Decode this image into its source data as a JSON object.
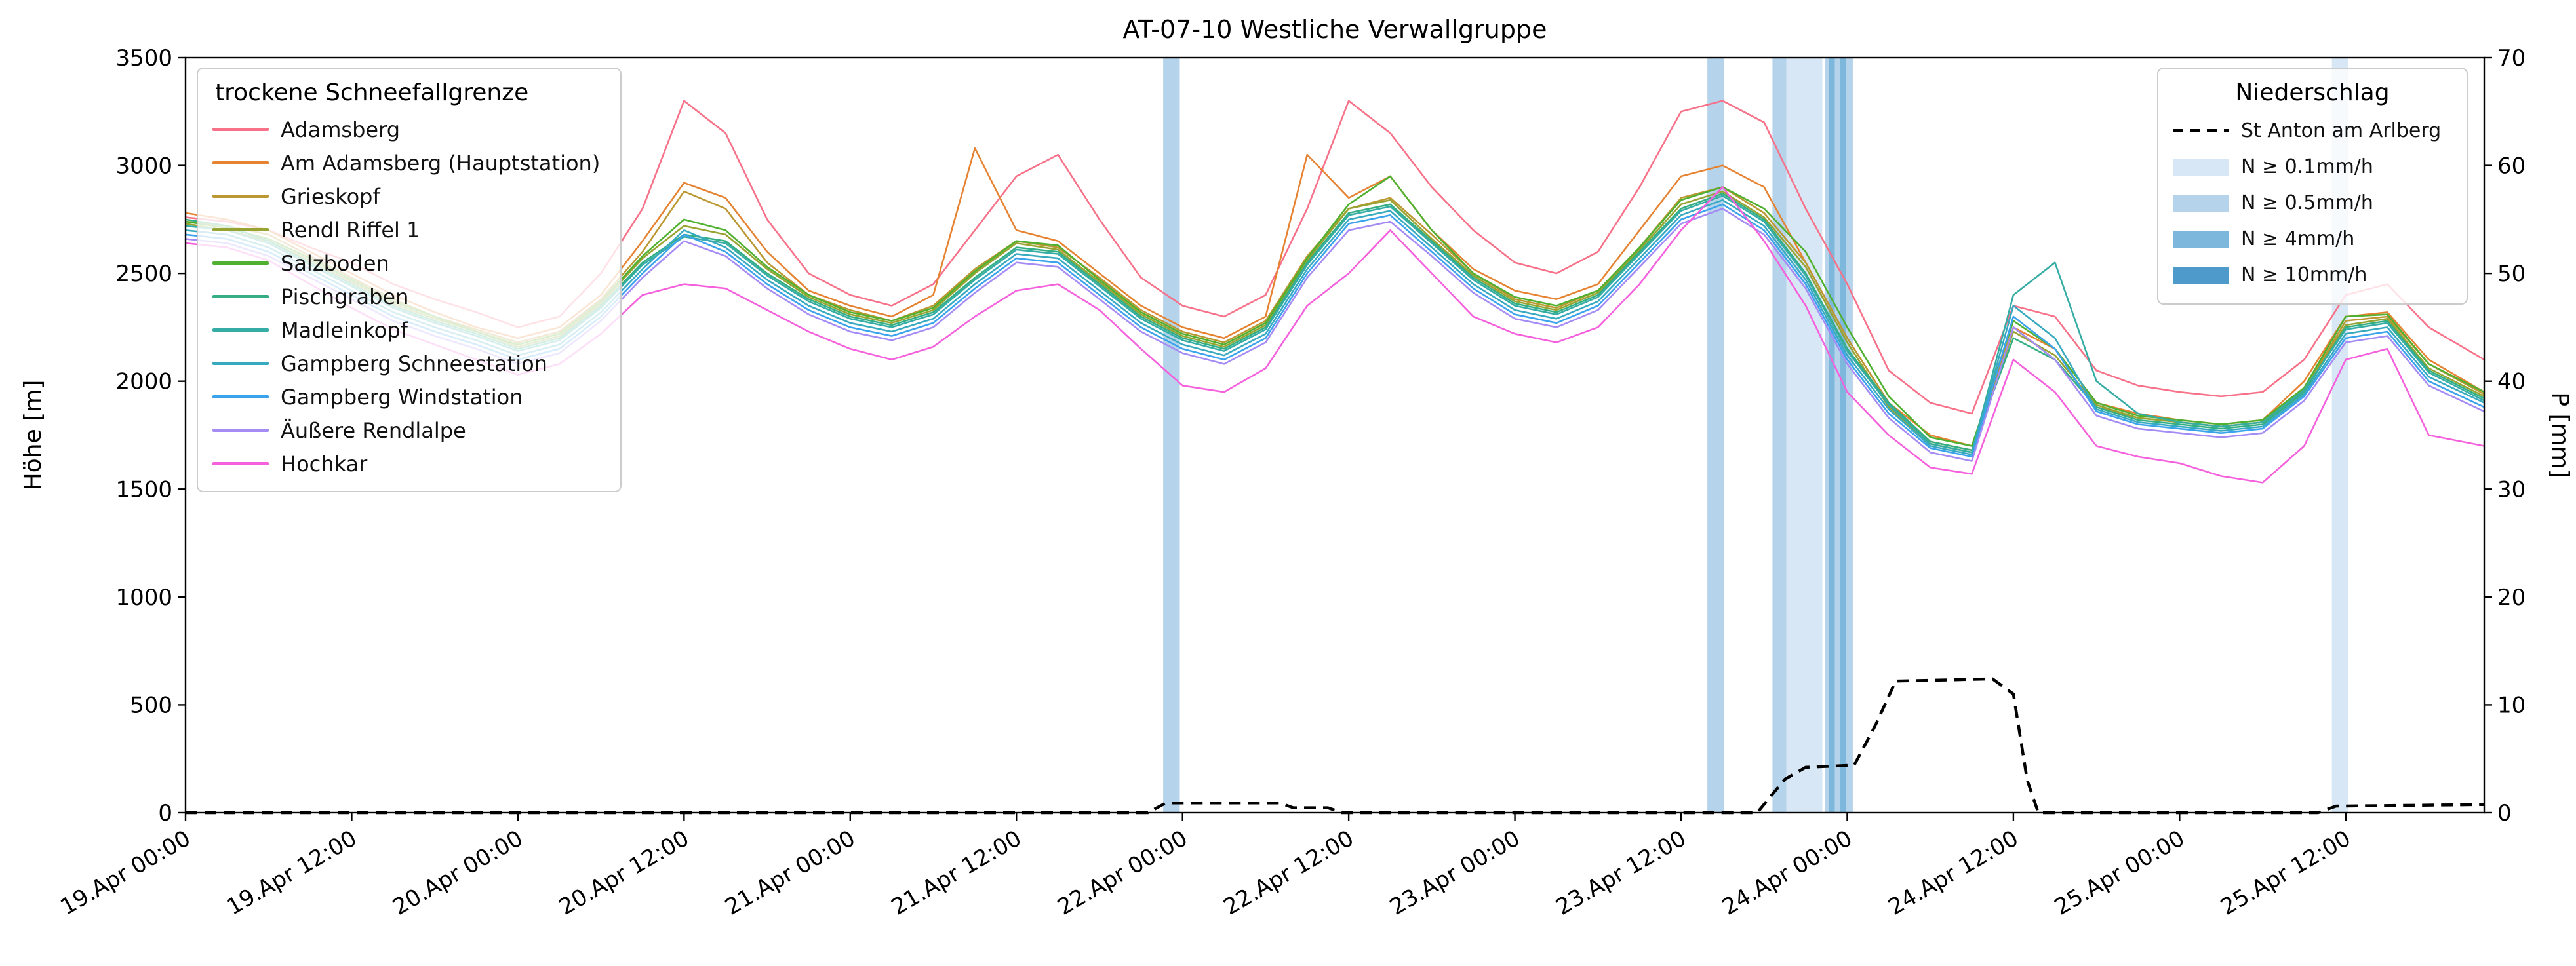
{
  "title": "AT-07-10 Westliche Verwallgruppe",
  "axes": {
    "y_left": {
      "label": "Höhe [m]",
      "min": 0,
      "max": 3500,
      "ticks": [
        0,
        500,
        1000,
        1500,
        2000,
        2500,
        3000,
        3500
      ]
    },
    "y_right": {
      "label": "P [mm]",
      "min": 0,
      "max": 70,
      "ticks": [
        0,
        10,
        20,
        30,
        40,
        50,
        60,
        70
      ]
    },
    "x": {
      "min_h": 0,
      "max_h": 166,
      "tick_step_h": 12,
      "tick_labels": [
        "19.Apr 00:00",
        "19.Apr 12:00",
        "20.Apr 00:00",
        "20.Apr 12:00",
        "21.Apr 00:00",
        "21.Apr 12:00",
        "22.Apr 00:00",
        "22.Apr 12:00",
        "23.Apr 00:00",
        "23.Apr 12:00",
        "24.Apr 00:00",
        "24.Apr 12:00",
        "25.Apr 00:00",
        "25.Apr 12:00"
      ]
    }
  },
  "legend_left": {
    "title": "trockene Schneefallgrenze"
  },
  "legend_right": {
    "title": "Niederschlag",
    "line_entry": "St Anton am Arlberg",
    "band_entries": [
      {
        "label": "N ≥ 0.1mm/h",
        "level": "0.1"
      },
      {
        "label": "N ≥ 0.5mm/h",
        "level": "0.5"
      },
      {
        "label": "N ≥ 4mm/h",
        "level": "4"
      },
      {
        "label": "N ≥ 10mm/h",
        "level": "10"
      }
    ]
  },
  "chart_data": {
    "type": "line",
    "title": "AT-07-10 Westliche Verwallgruppe",
    "xlabel": "",
    "ylabel": "Höhe [m]",
    "ylabel_right": "P [mm]",
    "ylim_left": [
      0,
      3500
    ],
    "ylim_right": [
      0,
      70
    ],
    "x_unit": "hours since 19.Apr 00:00",
    "x_hours": [
      0,
      3,
      6,
      9,
      12,
      15,
      18,
      21,
      24,
      27,
      30,
      33,
      36,
      39,
      42,
      45,
      48,
      51,
      54,
      57,
      60,
      63,
      66,
      69,
      72,
      75,
      78,
      81,
      84,
      87,
      90,
      93,
      96,
      99,
      102,
      105,
      108,
      111,
      114,
      117,
      120,
      123,
      126,
      129,
      132,
      135,
      138,
      141,
      144,
      147,
      150,
      153,
      156,
      159,
      162,
      166
    ],
    "series": [
      {
        "name": "Adamsberg",
        "color": "#f77189",
        "values": [
          2760,
          2740,
          2700,
          2620,
          2550,
          2450,
          2380,
          2320,
          2250,
          2300,
          2500,
          2800,
          3300,
          3150,
          2750,
          2500,
          2400,
          2350,
          2450,
          2700,
          2950,
          3050,
          2750,
          2480,
          2350,
          2300,
          2400,
          2800,
          3300,
          3150,
          2900,
          2700,
          2550,
          2500,
          2600,
          2900,
          3250,
          3300,
          3200,
          2800,
          2450,
          2050,
          1900,
          1850,
          2350,
          2300,
          2050,
          1980,
          1950,
          1930,
          1950,
          2100,
          2400,
          2450,
          2250,
          2100
        ]
      },
      {
        "name": "Am Adamsberg (Hauptstation)",
        "color": "#e68332",
        "values": [
          2780,
          2750,
          2700,
          2600,
          2500,
          2400,
          2320,
          2250,
          2200,
          2250,
          2400,
          2650,
          2920,
          2850,
          2600,
          2420,
          2350,
          2300,
          2400,
          3080,
          2700,
          2650,
          2500,
          2350,
          2250,
          2200,
          2300,
          3050,
          2850,
          2950,
          2700,
          2520,
          2420,
          2380,
          2450,
          2700,
          2950,
          3000,
          2900,
          2550,
          2200,
          1900,
          1750,
          1700,
          2250,
          2150,
          1900,
          1850,
          1820,
          1800,
          1820,
          2000,
          2300,
          2320,
          2100,
          1950
        ]
      },
      {
        "name": "Grieskopf",
        "color": "#bb9832",
        "values": [
          2740,
          2720,
          2680,
          2580,
          2480,
          2380,
          2300,
          2240,
          2180,
          2230,
          2380,
          2600,
          2880,
          2800,
          2550,
          2400,
          2330,
          2280,
          2350,
          2520,
          2650,
          2620,
          2480,
          2330,
          2230,
          2180,
          2280,
          2580,
          2800,
          2850,
          2680,
          2500,
          2380,
          2340,
          2420,
          2620,
          2850,
          2900,
          2780,
          2550,
          2200,
          1900,
          1720,
          1680,
          2250,
          2100,
          1880,
          1830,
          1810,
          1790,
          1810,
          1960,
          2280,
          2300,
          2080,
          1940
        ]
      },
      {
        "name": "Rendl Riffel 1",
        "color": "#97a431",
        "values": [
          2730,
          2700,
          2650,
          2560,
          2460,
          2360,
          2290,
          2230,
          2160,
          2210,
          2360,
          2570,
          2720,
          2680,
          2520,
          2390,
          2310,
          2270,
          2330,
          2500,
          2640,
          2610,
          2460,
          2310,
          2210,
          2160,
          2260,
          2560,
          2800,
          2840,
          2660,
          2490,
          2370,
          2330,
          2410,
          2610,
          2820,
          2880,
          2760,
          2530,
          2180,
          1880,
          1710,
          1670,
          2230,
          2120,
          1890,
          1830,
          1810,
          1790,
          1810,
          1960,
          2260,
          2290,
          2060,
          1930
        ]
      },
      {
        "name": "Salzboden",
        "color": "#50b131",
        "values": [
          2740,
          2710,
          2660,
          2570,
          2470,
          2370,
          2300,
          2230,
          2170,
          2220,
          2370,
          2580,
          2750,
          2700,
          2530,
          2400,
          2320,
          2280,
          2340,
          2510,
          2650,
          2630,
          2470,
          2320,
          2220,
          2170,
          2270,
          2570,
          2820,
          2950,
          2700,
          2500,
          2390,
          2350,
          2420,
          2620,
          2840,
          2900,
          2800,
          2600,
          2250,
          1930,
          1740,
          1700,
          2280,
          2150,
          1900,
          1840,
          1820,
          1800,
          1820,
          1970,
          2300,
          2310,
          2080,
          1950
        ]
      },
      {
        "name": "Pischgraben",
        "color": "#34af84",
        "values": [
          2750,
          2720,
          2650,
          2550,
          2450,
          2350,
          2280,
          2220,
          2150,
          2200,
          2350,
          2550,
          2680,
          2650,
          2500,
          2380,
          2300,
          2260,
          2320,
          2480,
          2620,
          2600,
          2450,
          2300,
          2200,
          2150,
          2250,
          2550,
          2780,
          2820,
          2650,
          2480,
          2360,
          2320,
          2400,
          2600,
          2800,
          2870,
          2750,
          2500,
          2150,
          1900,
          1720,
          1680,
          2200,
          2100,
          1880,
          1820,
          1800,
          1780,
          1800,
          1950,
          2250,
          2280,
          2050,
          1920
        ]
      },
      {
        "name": "Madleinkopf",
        "color": "#36ada4",
        "values": [
          2720,
          2700,
          2640,
          2540,
          2440,
          2340,
          2270,
          2210,
          2140,
          2190,
          2340,
          2540,
          2670,
          2640,
          2490,
          2370,
          2290,
          2250,
          2310,
          2470,
          2610,
          2590,
          2440,
          2290,
          2190,
          2140,
          2240,
          2540,
          2770,
          2810,
          2640,
          2470,
          2350,
          2310,
          2390,
          2590,
          2790,
          2860,
          2740,
          2490,
          2140,
          1890,
          1710,
          1670,
          2400,
          2550,
          2000,
          1850,
          1810,
          1790,
          1810,
          1960,
          2240,
          2270,
          2040,
          1910
        ]
      },
      {
        "name": "Gampberg Schneestation",
        "color": "#38aabf",
        "values": [
          2700,
          2680,
          2620,
          2520,
          2420,
          2320,
          2250,
          2190,
          2120,
          2170,
          2320,
          2520,
          2700,
          2620,
          2470,
          2350,
          2270,
          2230,
          2290,
          2450,
          2590,
          2570,
          2420,
          2270,
          2170,
          2120,
          2220,
          2520,
          2750,
          2790,
          2620,
          2450,
          2330,
          2290,
          2370,
          2570,
          2770,
          2840,
          2720,
          2470,
          2120,
          1870,
          1700,
          1660,
          2350,
          2200,
          1870,
          1810,
          1790,
          1770,
          1790,
          1940,
          2220,
          2250,
          2020,
          1900
        ]
      },
      {
        "name": "Gampberg Windstation",
        "color": "#3ba3ec",
        "values": [
          2680,
          2660,
          2600,
          2500,
          2400,
          2300,
          2230,
          2170,
          2100,
          2150,
          2300,
          2500,
          2680,
          2600,
          2450,
          2330,
          2250,
          2210,
          2270,
          2430,
          2570,
          2550,
          2400,
          2250,
          2150,
          2100,
          2200,
          2500,
          2730,
          2770,
          2600,
          2430,
          2310,
          2270,
          2350,
          2550,
          2750,
          2820,
          2700,
          2450,
          2100,
          1850,
          1690,
          1650,
          2300,
          2150,
          1860,
          1800,
          1780,
          1760,
          1780,
          1930,
          2200,
          2230,
          2000,
          1880
        ]
      },
      {
        "name": "Äußere Rendlalpe",
        "color": "#a48cf4",
        "values": [
          2660,
          2640,
          2580,
          2480,
          2380,
          2280,
          2210,
          2150,
          2080,
          2130,
          2280,
          2480,
          2650,
          2580,
          2430,
          2310,
          2230,
          2190,
          2250,
          2410,
          2550,
          2530,
          2380,
          2230,
          2130,
          2080,
          2180,
          2480,
          2700,
          2740,
          2580,
          2410,
          2290,
          2250,
          2330,
          2530,
          2730,
          2800,
          2680,
          2430,
          2080,
          1830,
          1670,
          1630,
          2250,
          2100,
          1840,
          1780,
          1760,
          1740,
          1760,
          1910,
          2180,
          2210,
          1980,
          1860
        ]
      },
      {
        "name": "Hochkar",
        "color": "#f561dd",
        "values": [
          2640,
          2620,
          2560,
          2450,
          2340,
          2240,
          2170,
          2100,
          2030,
          2080,
          2220,
          2400,
          2450,
          2430,
          2330,
          2230,
          2150,
          2100,
          2160,
          2300,
          2420,
          2450,
          2330,
          2150,
          1980,
          1950,
          2060,
          2350,
          2500,
          2700,
          2500,
          2300,
          2220,
          2180,
          2250,
          2450,
          2700,
          2900,
          2650,
          2350,
          1950,
          1750,
          1600,
          1570,
          2100,
          1950,
          1700,
          1650,
          1620,
          1560,
          1530,
          1700,
          2100,
          2150,
          1750,
          1700
        ]
      }
    ],
    "precip_line": {
      "name": "St Anton am Arlberg",
      "color": "#000000",
      "style": "dashed",
      "axis": "right",
      "points": [
        [
          0,
          0
        ],
        [
          69.5,
          0
        ],
        [
          70.8,
          0.9
        ],
        [
          79,
          0.9
        ],
        [
          80,
          0.45
        ],
        [
          82.5,
          0.45
        ],
        [
          83.5,
          0
        ],
        [
          113.5,
          0
        ],
        [
          115.5,
          3.1
        ],
        [
          117,
          4.2
        ],
        [
          120.5,
          4.4
        ],
        [
          122,
          8
        ],
        [
          123.5,
          12.2
        ],
        [
          130.5,
          12.4
        ],
        [
          132,
          11
        ],
        [
          133,
          3
        ],
        [
          133.8,
          0
        ],
        [
          154,
          0
        ],
        [
          155.3,
          0.6
        ],
        [
          166,
          0.75
        ]
      ]
    },
    "band_colors": {
      "0.1": "#d8e7f5",
      "0.5": "#b5d3ea",
      "4": "#7db8dc",
      "10": "#4e9bcb"
    },
    "precip_bands": [
      {
        "start_h": 70.6,
        "end_h": 71.8,
        "level": "0.5"
      },
      {
        "start_h": 109.9,
        "end_h": 111.1,
        "level": "0.5"
      },
      {
        "start_h": 114.6,
        "end_h": 115.6,
        "level": "0.5"
      },
      {
        "start_h": 115.6,
        "end_h": 118.2,
        "level": "0.1"
      },
      {
        "start_h": 118.4,
        "end_h": 120.4,
        "level": "0.5"
      },
      {
        "start_h": 118.7,
        "end_h": 119.1,
        "level": "4"
      },
      {
        "start_h": 119.5,
        "end_h": 119.9,
        "level": "4"
      },
      {
        "start_h": 155.0,
        "end_h": 156.2,
        "level": "0.1"
      }
    ]
  }
}
